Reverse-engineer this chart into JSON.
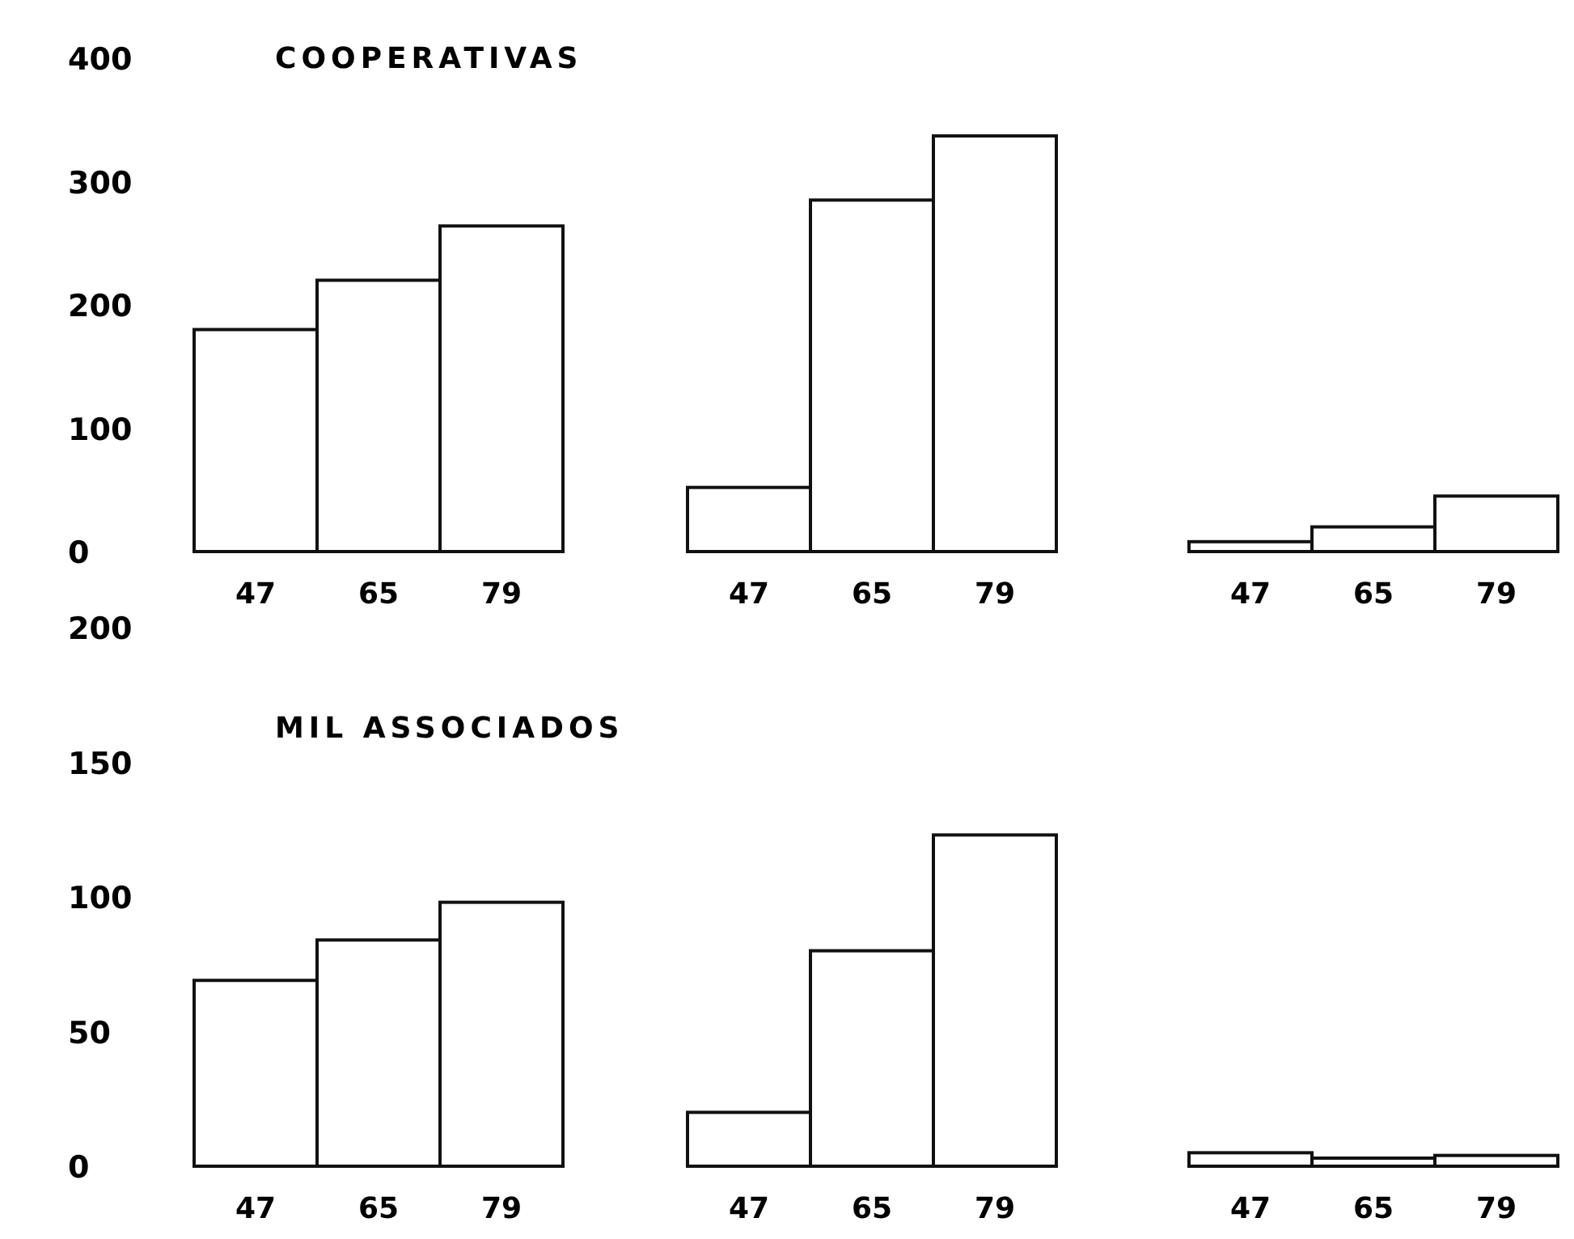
{
  "chart_data": [
    {
      "type": "bar",
      "title": "COOPERATIVAS",
      "categories": [
        "47",
        "65",
        "79"
      ],
      "values": [
        180,
        220,
        264
      ],
      "color": "#ffffff",
      "ylim": [
        0,
        400
      ],
      "yticks": [
        0,
        100,
        200,
        300,
        400
      ]
    },
    {
      "type": "bar",
      "categories": [
        "47",
        "65",
        "79"
      ],
      "values": [
        52,
        285,
        337
      ],
      "color": "#ffffff",
      "ylim": [
        0,
        400
      ],
      "yticks": [
        0,
        100,
        200,
        300,
        400
      ],
      "tick_labels": "x"
    },
    {
      "type": "bar",
      "categories": [
        "47",
        "65",
        "79"
      ],
      "values": [
        8,
        20,
        45
      ],
      "color": "#ffffff",
      "ylim": [
        0,
        400
      ],
      "yticks": [
        0,
        100,
        200,
        300,
        400
      ],
      "tick_labels": "x"
    },
    {
      "type": "bar",
      "title": "MIL ASSOCIADOS",
      "categories": [
        "47",
        "65",
        "79"
      ],
      "values": [
        69,
        84,
        98
      ],
      "color": "#ffffff",
      "ylim": [
        0,
        200
      ],
      "yticks": [
        0,
        50,
        100,
        150,
        200
      ]
    },
    {
      "type": "bar",
      "categories": [
        "47",
        "65",
        "79"
      ],
      "values": [
        20,
        80,
        123
      ],
      "color": "#ffffff",
      "ylim": [
        0,
        200
      ],
      "yticks": [
        0,
        50,
        100,
        150,
        200
      ],
      "tick_labels": "x"
    },
    {
      "type": "bar",
      "categories": [
        "47",
        "65",
        "79"
      ],
      "values": [
        5,
        3,
        4
      ],
      "color": "#ffffff",
      "ylim": [
        0,
        200
      ],
      "yticks": [
        0,
        50,
        100,
        150,
        200
      ],
      "tick_labels": "x"
    }
  ]
}
